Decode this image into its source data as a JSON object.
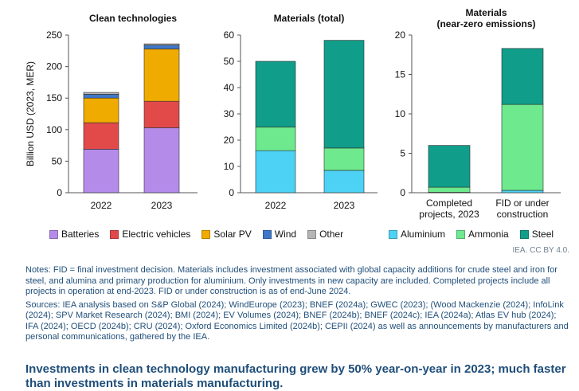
{
  "colors": {
    "batteries": "#b58bea",
    "electric_vehicles": "#e24a4a",
    "solar_pv": "#f0ab00",
    "wind": "#3f78c9",
    "other": "#b5b5b5",
    "aluminium": "#4dd2f5",
    "ammonia": "#6ee98e",
    "steel": "#109e8a"
  },
  "legend": {
    "batteries": "Batteries",
    "electric_vehicles": "Electric vehicles",
    "solar_pv": "Solar PV",
    "wind": "Wind",
    "other": "Other",
    "aluminium": "Aluminium",
    "ammonia": "Ammonia",
    "steel": "Steel"
  },
  "chart_data": [
    {
      "type": "bar",
      "stacked": true,
      "title": "Clean technologies",
      "ylabel": "Billion USD (2023, MER)",
      "ylim": [
        0,
        250
      ],
      "yticks": [
        0,
        50,
        100,
        150,
        200,
        250
      ],
      "categories": [
        "2022",
        "2023"
      ],
      "series": [
        {
          "name": "Batteries",
          "color_key": "batteries",
          "values": [
            69,
            103
          ]
        },
        {
          "name": "Electric vehicles",
          "color_key": "electric_vehicles",
          "values": [
            42,
            42
          ]
        },
        {
          "name": "Solar PV",
          "color_key": "solar_pv",
          "values": [
            39,
            83
          ]
        },
        {
          "name": "Wind",
          "color_key": "wind",
          "values": [
            6,
            6
          ]
        },
        {
          "name": "Other",
          "color_key": "other",
          "values": [
            3,
            2
          ]
        }
      ]
    },
    {
      "type": "bar",
      "stacked": true,
      "title": "Materials (total)",
      "ylim": [
        0,
        60
      ],
      "yticks": [
        0,
        10,
        20,
        30,
        40,
        50,
        60
      ],
      "categories": [
        "2022",
        "2023"
      ],
      "series": [
        {
          "name": "Aluminium",
          "color_key": "aluminium",
          "values": [
            16,
            8.5
          ]
        },
        {
          "name": "Ammonia",
          "color_key": "ammonia",
          "values": [
            9,
            8.5
          ]
        },
        {
          "name": "Steel",
          "color_key": "steel",
          "values": [
            25,
            41
          ]
        }
      ]
    },
    {
      "type": "bar",
      "stacked": true,
      "title": "Materials",
      "subtitle": "(near-zero emissions)",
      "ylim": [
        0,
        20
      ],
      "yticks": [
        0,
        5,
        10,
        15,
        20
      ],
      "categories": [
        "Completed projects, 2023",
        "FID or under construction"
      ],
      "category_lines": [
        [
          "Completed",
          "projects, 2023"
        ],
        [
          "FID or under",
          "construction"
        ]
      ],
      "series": [
        {
          "name": "Aluminium",
          "color_key": "aluminium",
          "values": [
            0.05,
            0.3
          ]
        },
        {
          "name": "Ammonia",
          "color_key": "ammonia",
          "values": [
            0.65,
            10.9
          ]
        },
        {
          "name": "Steel",
          "color_key": "steel",
          "values": [
            5.3,
            7.1
          ]
        }
      ]
    }
  ],
  "credit": "IEA. CC BY 4.0.",
  "notes": "Notes: FID = final investment decision. Materials includes investment associated with global capacity additions for crude steel and iron for steel, and alumina and primary production for aluminium. Only investments in new capacity are included. Completed projects include all projects in operation at end-2023. FID or under construction is as of end-June 2024.",
  "sources": "Sources: IEA analysis based on S&P Global (2024); WindEurope (2023); BNEF (2024a); GWEC (2023); (Wood Mackenzie (2024); InfoLink (2024); SPV Market Research (2024); BMI (2024); EV Volumes (2024); BNEF (2024b); BNEF (2024c); IEA (2024a); Atlas EV hub (2024); IFA (2024); OECD (2024b); CRU (2024); Oxford Economics Limited (2024b); CEPII (2024) as well as announcements by manufacturers and personal communications, gathered by the IEA.",
  "headline": "Investments in clean technology manufacturing grew by 50% year-on-year in 2023; much faster than investments in materials manufacturing."
}
